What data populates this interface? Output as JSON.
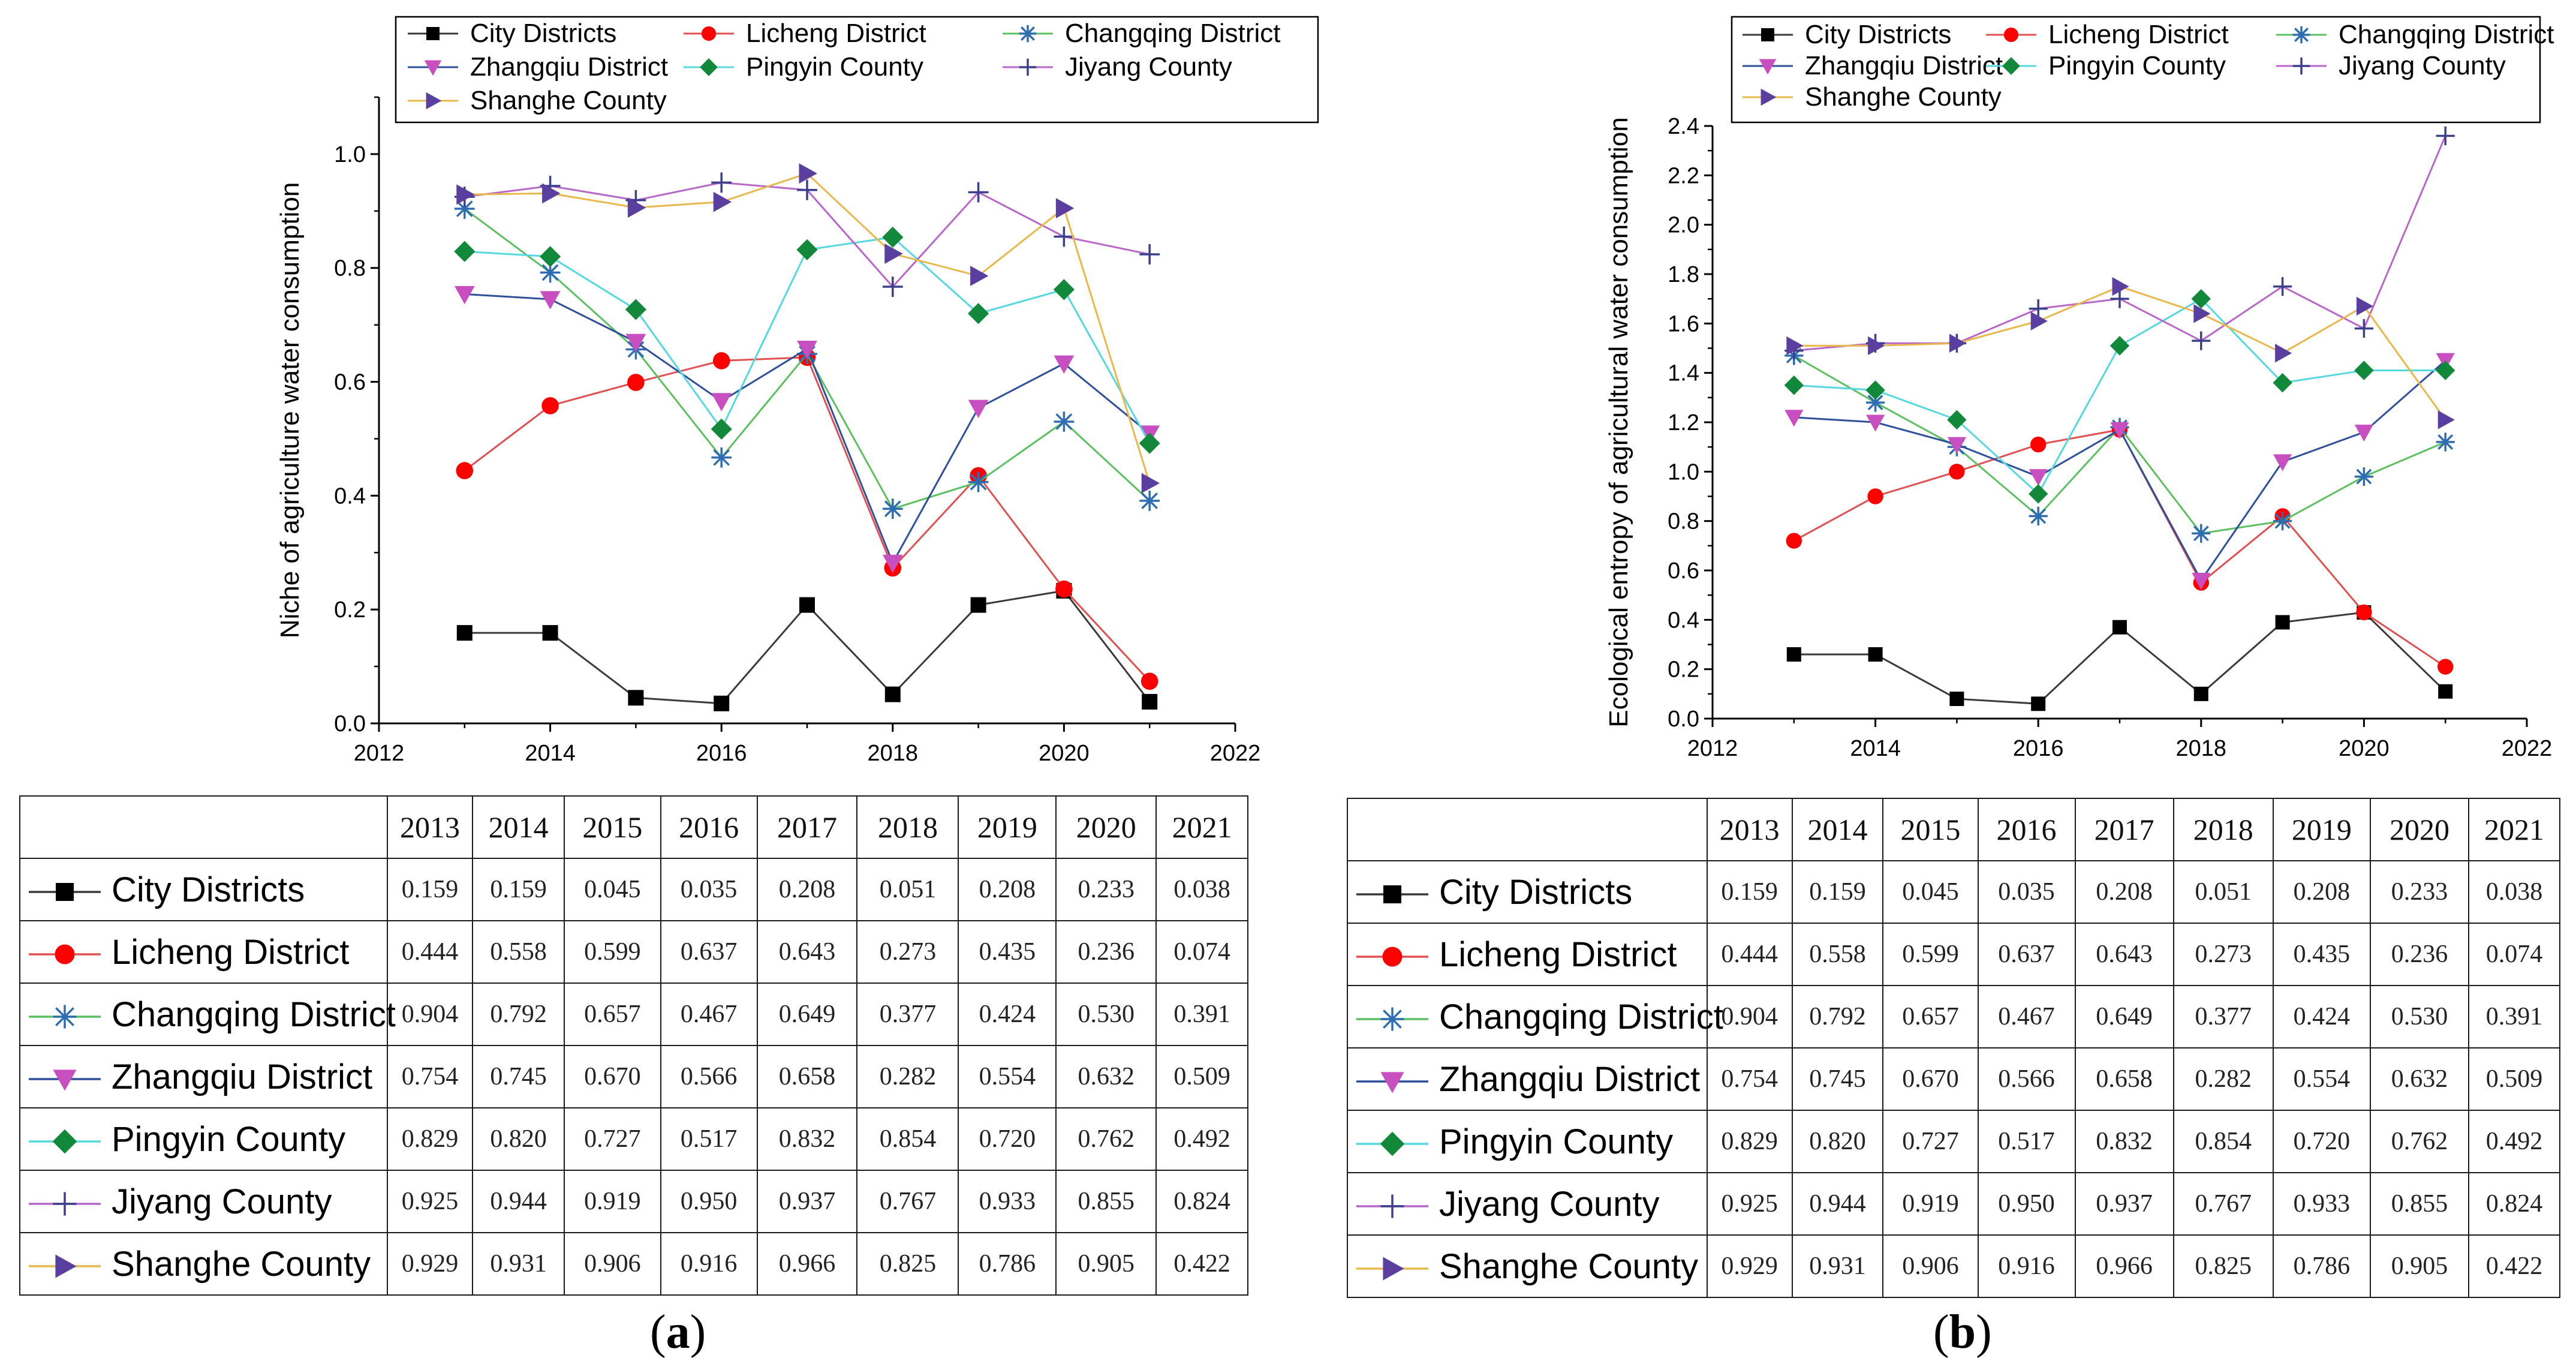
{
  "chart_data": [
    {
      "type": "line",
      "panel": "a",
      "ylabel": "Niche of agriculture water consumption",
      "xlabel": "",
      "xlim": [
        2012,
        2022
      ],
      "ylim": [
        0,
        1.1
      ],
      "xticks": [
        "2012",
        "2014",
        "2016",
        "2018",
        "2020",
        "2022"
      ],
      "yticks": [
        "0.0",
        "0.2",
        "0.4",
        "0.6",
        "0.8",
        "1.0"
      ],
      "x": [
        2013,
        2014,
        2015,
        2016,
        2017,
        2018,
        2019,
        2020,
        2021
      ],
      "series": [
        {
          "name": "City Districts",
          "values": [
            0.159,
            0.159,
            0.045,
            0.035,
            0.208,
            0.051,
            0.208,
            0.233,
            0.038
          ]
        },
        {
          "name": "Licheng District",
          "values": [
            0.444,
            0.558,
            0.599,
            0.637,
            0.643,
            0.273,
            0.435,
            0.236,
            0.074
          ]
        },
        {
          "name": "Changqing District",
          "values": [
            0.904,
            0.792,
            0.657,
            0.467,
            0.649,
            0.377,
            0.424,
            0.53,
            0.391
          ]
        },
        {
          "name": "Zhangqiu District",
          "values": [
            0.754,
            0.745,
            0.67,
            0.566,
            0.658,
            0.282,
            0.554,
            0.632,
            0.509
          ]
        },
        {
          "name": "Pingyin County",
          "values": [
            0.829,
            0.82,
            0.727,
            0.517,
            0.832,
            0.854,
            0.72,
            0.762,
            0.492
          ]
        },
        {
          "name": "Jiyang County",
          "values": [
            0.925,
            0.944,
            0.919,
            0.95,
            0.937,
            0.767,
            0.933,
            0.855,
            0.824
          ]
        },
        {
          "name": "Shanghe County",
          "values": [
            0.929,
            0.931,
            0.906,
            0.916,
            0.966,
            0.825,
            0.786,
            0.905,
            0.422
          ]
        }
      ]
    },
    {
      "type": "line",
      "panel": "b",
      "ylabel": "Ecological entropy of agricultural water consumption",
      "xlabel": "",
      "xlim": [
        2012,
        2022
      ],
      "ylim": [
        0,
        2.4
      ],
      "xticks": [
        "2012",
        "2014",
        "2016",
        "2018",
        "2020",
        "2022"
      ],
      "yticks": [
        "0.0",
        "0.2",
        "0.4",
        "0.6",
        "0.8",
        "1.0",
        "1.2",
        "1.4",
        "1.6",
        "1.8",
        "2.0",
        "2.2",
        "2.4"
      ],
      "x": [
        2013,
        2014,
        2015,
        2016,
        2017,
        2018,
        2019,
        2020,
        2021
      ],
      "series": [
        {
          "name": "City Districts",
          "values": [
            0.26,
            0.26,
            0.08,
            0.06,
            0.37,
            0.1,
            0.39,
            0.43,
            0.11
          ]
        },
        {
          "name": "Licheng District",
          "values": [
            0.72,
            0.9,
            1.0,
            1.11,
            1.17,
            0.55,
            0.82,
            0.43,
            0.21
          ]
        },
        {
          "name": "Changqing District",
          "values": [
            1.47,
            1.28,
            1.1,
            0.82,
            1.18,
            0.75,
            0.8,
            0.98,
            1.12
          ]
        },
        {
          "name": "Zhangqiu District",
          "values": [
            1.22,
            1.2,
            1.11,
            0.98,
            1.17,
            0.56,
            1.04,
            1.16,
            1.45
          ]
        },
        {
          "name": "Pingyin County",
          "values": [
            1.35,
            1.33,
            1.21,
            0.91,
            1.51,
            1.7,
            1.36,
            1.41,
            1.41
          ]
        },
        {
          "name": "Jiyang County",
          "values": [
            1.49,
            1.52,
            1.52,
            1.66,
            1.7,
            1.53,
            1.75,
            1.58,
            2.36
          ]
        },
        {
          "name": "Shanghe County",
          "values": [
            1.51,
            1.51,
            1.52,
            1.61,
            1.75,
            1.64,
            1.48,
            1.67,
            1.21
          ]
        }
      ]
    }
  ],
  "legend_order": [
    "City Districts",
    "Licheng District",
    "Changqing District",
    "Zhangqiu District",
    "Pingyin County",
    "Jiyang County",
    "Shanghe County"
  ],
  "series_style": {
    "City Districts": {
      "line_color": "#3a3a3a",
      "marker": "square",
      "marker_color": "#000000"
    },
    "Licheng District": {
      "line_color": "#e05050",
      "marker": "circle",
      "marker_color": "#ff0000"
    },
    "Changqing District": {
      "line_color": "#5cc060",
      "marker": "asterisk",
      "marker_color": "#2f6db3"
    },
    "Zhangqiu District": {
      "line_color": "#2e4f9a",
      "marker": "triangle-down",
      "marker_color": "#c84fbf"
    },
    "Pingyin County": {
      "line_color": "#55d8e0",
      "marker": "diamond",
      "marker_color": "#11883a"
    },
    "Jiyang County": {
      "line_color": "#b867c8",
      "marker": "plus",
      "marker_color": "#3b3f8c"
    },
    "Shanghe County": {
      "line_color": "#e8b84a",
      "marker": "triangle-right",
      "marker_color": "#5a3fa0"
    }
  },
  "table": {
    "years": [
      "2013",
      "2014",
      "2015",
      "2016",
      "2017",
      "2018",
      "2019",
      "2020",
      "2021"
    ],
    "rows": [
      {
        "name": "City Districts",
        "values": [
          "0.159",
          "0.159",
          "0.045",
          "0.035",
          "0.208",
          "0.051",
          "0.208",
          "0.233",
          "0.038"
        ]
      },
      {
        "name": "Licheng District",
        "values": [
          "0.444",
          "0.558",
          "0.599",
          "0.637",
          "0.643",
          "0.273",
          "0.435",
          "0.236",
          "0.074"
        ]
      },
      {
        "name": "Changqing District",
        "values": [
          "0.904",
          "0.792",
          "0.657",
          "0.467",
          "0.649",
          "0.377",
          "0.424",
          "0.530",
          "0.391"
        ]
      },
      {
        "name": "Zhangqiu District",
        "values": [
          "0.754",
          "0.745",
          "0.670",
          "0.566",
          "0.658",
          "0.282",
          "0.554",
          "0.632",
          "0.509"
        ]
      },
      {
        "name": "Pingyin County",
        "values": [
          "0.829",
          "0.820",
          "0.727",
          "0.517",
          "0.832",
          "0.854",
          "0.720",
          "0.762",
          "0.492"
        ]
      },
      {
        "name": "Jiyang County",
        "values": [
          "0.925",
          "0.944",
          "0.919",
          "0.950",
          "0.937",
          "0.767",
          "0.933",
          "0.855",
          "0.824"
        ]
      },
      {
        "name": "Shanghe County",
        "values": [
          "0.929",
          "0.931",
          "0.906",
          "0.916",
          "0.966",
          "0.825",
          "0.786",
          "0.905",
          "0.422"
        ]
      }
    ]
  },
  "panel_labels": {
    "a": "a",
    "b": "b",
    "open": "(",
    "close": ")"
  }
}
